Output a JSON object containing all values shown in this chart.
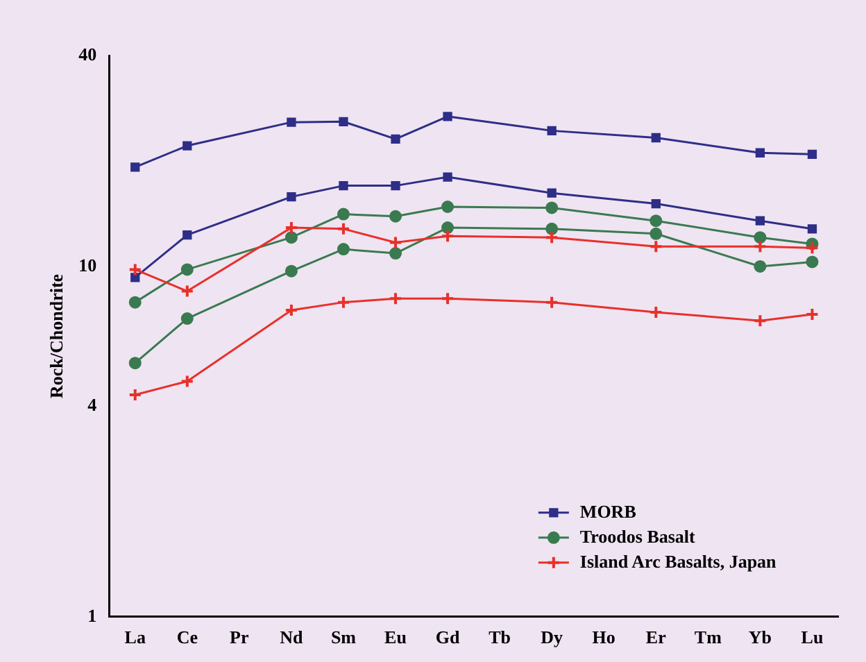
{
  "chart_data": {
    "type": "line",
    "ylabel": "Rock/Chondrite",
    "categories": [
      "La",
      "Ce",
      "Pr",
      "Nd",
      "Sm",
      "Eu",
      "Gd",
      "Tb",
      "Dy",
      "Ho",
      "Er",
      "Tm",
      "Yb",
      "Lu"
    ],
    "log": true,
    "ylim": [
      1,
      40
    ],
    "yticks": [
      1,
      4,
      10,
      40
    ],
    "grid": false,
    "legend": "bottom right",
    "line_style": "solid",
    "series": [
      {
        "name": "MORB",
        "color": "#2e2e88",
        "marker": "square",
        "values": [
          19.2,
          22.1,
          null,
          25.8,
          25.9,
          23.1,
          26.8,
          null,
          24.4,
          null,
          23.3,
          null,
          21.1,
          20.9
        ]
      },
      {
        "color": "#2e2e88",
        "marker": "square",
        "values": [
          9.3,
          12.3,
          null,
          15.8,
          17.0,
          17.0,
          18.0,
          null,
          16.2,
          null,
          15.1,
          null,
          13.5,
          12.8
        ]
      },
      {
        "name": "Troodos Basalt",
        "color": "#3a7a50",
        "marker": "circle",
        "values": [
          7.9,
          9.8,
          null,
          12.1,
          14.1,
          13.9,
          14.8,
          null,
          14.7,
          null,
          13.5,
          null,
          12.1,
          11.6
        ]
      },
      {
        "color": "#3a7a50",
        "marker": "circle",
        "values": [
          5.3,
          7.1,
          null,
          9.7,
          11.2,
          10.9,
          12.9,
          null,
          12.8,
          null,
          12.4,
          null,
          10.0,
          10.3
        ]
      },
      {
        "name": "Island Arc Basalts, Japan",
        "color": "#e8302a",
        "marker": "cross",
        "values": [
          9.8,
          8.5,
          null,
          12.9,
          12.8,
          11.7,
          12.2,
          null,
          12.1,
          null,
          11.4,
          null,
          11.4,
          11.3
        ]
      },
      {
        "color": "#e8302a",
        "marker": "cross",
        "values": [
          4.3,
          4.7,
          null,
          7.5,
          7.9,
          8.1,
          8.1,
          null,
          7.9,
          null,
          7.4,
          null,
          7.0,
          7.3
        ]
      }
    ]
  }
}
